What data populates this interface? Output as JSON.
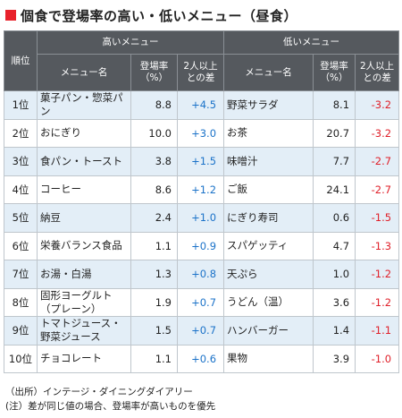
{
  "title": "個食で登場率の高い・低いメニュー（昼食）",
  "header": {
    "rank": "順位",
    "high_group": "高いメニュー",
    "low_group": "低いメニュー",
    "menu_name": "メニュー名",
    "rate": "登場率（%）",
    "diff": "2人以上との差"
  },
  "rows": [
    {
      "rank": "1位",
      "high_name": "菓子パン・惣菜パン",
      "high_rate": "8.8",
      "high_diff": "+4.5",
      "low_name": "野菜サラダ",
      "low_rate": "8.1",
      "low_diff": "-3.2"
    },
    {
      "rank": "2位",
      "high_name": "おにぎり",
      "high_rate": "10.0",
      "high_diff": "+3.0",
      "low_name": "お茶",
      "low_rate": "20.7",
      "low_diff": "-3.2"
    },
    {
      "rank": "3位",
      "high_name": "食パン・トースト",
      "high_rate": "3.8",
      "high_diff": "+1.5",
      "low_name": "味噌汁",
      "low_rate": "7.7",
      "low_diff": "-2.7"
    },
    {
      "rank": "4位",
      "high_name": "コーヒー",
      "high_rate": "8.6",
      "high_diff": "+1.2",
      "low_name": "ご飯",
      "low_rate": "24.1",
      "low_diff": "-2.7"
    },
    {
      "rank": "5位",
      "high_name": "納豆",
      "high_rate": "2.4",
      "high_diff": "+1.0",
      "low_name": "にぎり寿司",
      "low_rate": "0.6",
      "low_diff": "-1.5"
    },
    {
      "rank": "6位",
      "high_name": "栄養バランス食品",
      "high_rate": "1.1",
      "high_diff": "+0.9",
      "low_name": "スパゲッティ",
      "low_rate": "4.7",
      "low_diff": "-1.3"
    },
    {
      "rank": "7位",
      "high_name": "お湯・白湯",
      "high_rate": "1.3",
      "high_diff": "+0.8",
      "low_name": "天ぷら",
      "low_rate": "1.0",
      "low_diff": "-1.2"
    },
    {
      "rank": "8位",
      "high_name": "固形ヨーグルト（プレーン）",
      "high_rate": "1.9",
      "high_diff": "+0.7",
      "low_name": "うどん（温）",
      "low_rate": "3.6",
      "low_diff": "-1.2"
    },
    {
      "rank": "9位",
      "high_name": "トマトジュース・野菜ジュース",
      "high_rate": "1.5",
      "high_diff": "+0.7",
      "low_name": "ハンバーガー",
      "low_rate": "1.4",
      "low_diff": "-1.1"
    },
    {
      "rank": "10位",
      "high_name": "チョコレート",
      "high_rate": "1.1",
      "high_diff": "+0.6",
      "low_name": "果物",
      "low_rate": "3.9",
      "low_diff": "-1.0"
    }
  ],
  "notes": {
    "source": "（出所）インテージ・ダイニングダイアリー",
    "note": "(注）差が同じ値の場合、登場率が高いものを優先"
  },
  "colors": {
    "title_marker": "#e8212b",
    "header_bg": "#55595e",
    "alt_row_bg": "#e3eef7",
    "positive": "#1c73c9",
    "negative": "#e0202a"
  }
}
